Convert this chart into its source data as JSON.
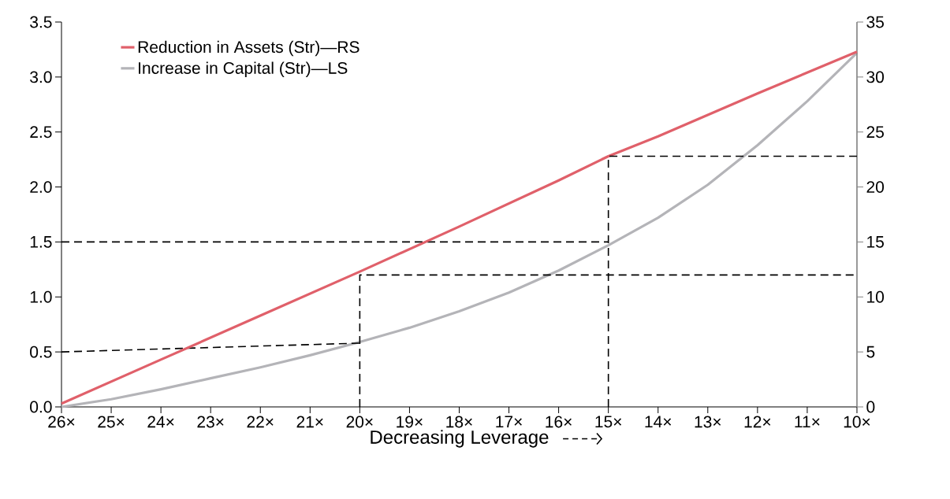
{
  "chart_data": {
    "type": "line",
    "xlabel": "Decreasing Leverage",
    "xlim": [
      26,
      10
    ],
    "xticks": [
      {
        "value": 26,
        "label": "26×"
      },
      {
        "value": 25,
        "label": "25×"
      },
      {
        "value": 24,
        "label": "24×"
      },
      {
        "value": 23,
        "label": "23×"
      },
      {
        "value": 22,
        "label": "22×"
      },
      {
        "value": 21,
        "label": "21×"
      },
      {
        "value": 20,
        "label": "20×"
      },
      {
        "value": 19,
        "label": "19×"
      },
      {
        "value": 18,
        "label": "18×"
      },
      {
        "value": 17,
        "label": "17×"
      },
      {
        "value": 16,
        "label": "16×"
      },
      {
        "value": 15,
        "label": "15×"
      },
      {
        "value": 14,
        "label": "14×"
      },
      {
        "value": 13,
        "label": "13×"
      },
      {
        "value": 12,
        "label": "12×"
      },
      {
        "value": 11,
        "label": "11×"
      },
      {
        "value": 10,
        "label": "10×"
      }
    ],
    "ylim": [
      0,
      3.5
    ],
    "yticks": [
      {
        "value": 0,
        "label": "0.0"
      },
      0.5,
      {
        "value": 1,
        "label": "1.0"
      },
      1.5,
      {
        "value": 2,
        "label": "2.0"
      },
      2.5,
      {
        "value": 3,
        "label": "3.0"
      },
      3.5
    ],
    "y2lim": [
      0,
      35
    ],
    "y2ticks": [
      0,
      5,
      10,
      15,
      20,
      25,
      30,
      35
    ],
    "legend": "top left",
    "series": [
      {
        "name": "Reduction in Assets (Str)—RS",
        "color": "#e0606a",
        "axis": "y2",
        "x": [
          26,
          24,
          22,
          20,
          18,
          16,
          15,
          14,
          12,
          10
        ],
        "values": [
          0.3,
          4.3,
          8.3,
          12.3,
          16.4,
          20.6,
          22.8,
          24.6,
          28.5,
          32.3
        ]
      },
      {
        "name": "Increase in Capital (Str)—LS",
        "color": "#b4b4b8",
        "x": [
          26,
          25,
          24,
          23,
          22,
          21,
          20,
          19,
          18,
          17,
          16,
          15,
          14,
          13,
          12,
          11,
          10
        ],
        "values": [
          0.0,
          0.07,
          0.16,
          0.26,
          0.36,
          0.47,
          0.59,
          0.72,
          0.87,
          1.04,
          1.24,
          1.47,
          1.72,
          2.02,
          2.38,
          2.78,
          3.22
        ]
      },
      {
        "color": "#000000",
        "line_style": "dashed",
        "x": [
          26,
          20
        ],
        "values": [
          0.5,
          0.58
        ]
      },
      {
        "color": "#000000",
        "line_style": "dashed",
        "x": [
          26,
          15
        ],
        "values": [
          1.5,
          1.5
        ]
      },
      {
        "color": "#000000",
        "line_style": "dashed",
        "axis": "y2",
        "x": [
          15,
          15,
          10
        ],
        "values": [
          0,
          22.8,
          22.8
        ]
      },
      {
        "color": "#000000",
        "line_style": "dashed",
        "axis": "y2",
        "x": [
          20,
          20,
          10
        ],
        "values": [
          0,
          12,
          12
        ]
      }
    ]
  }
}
